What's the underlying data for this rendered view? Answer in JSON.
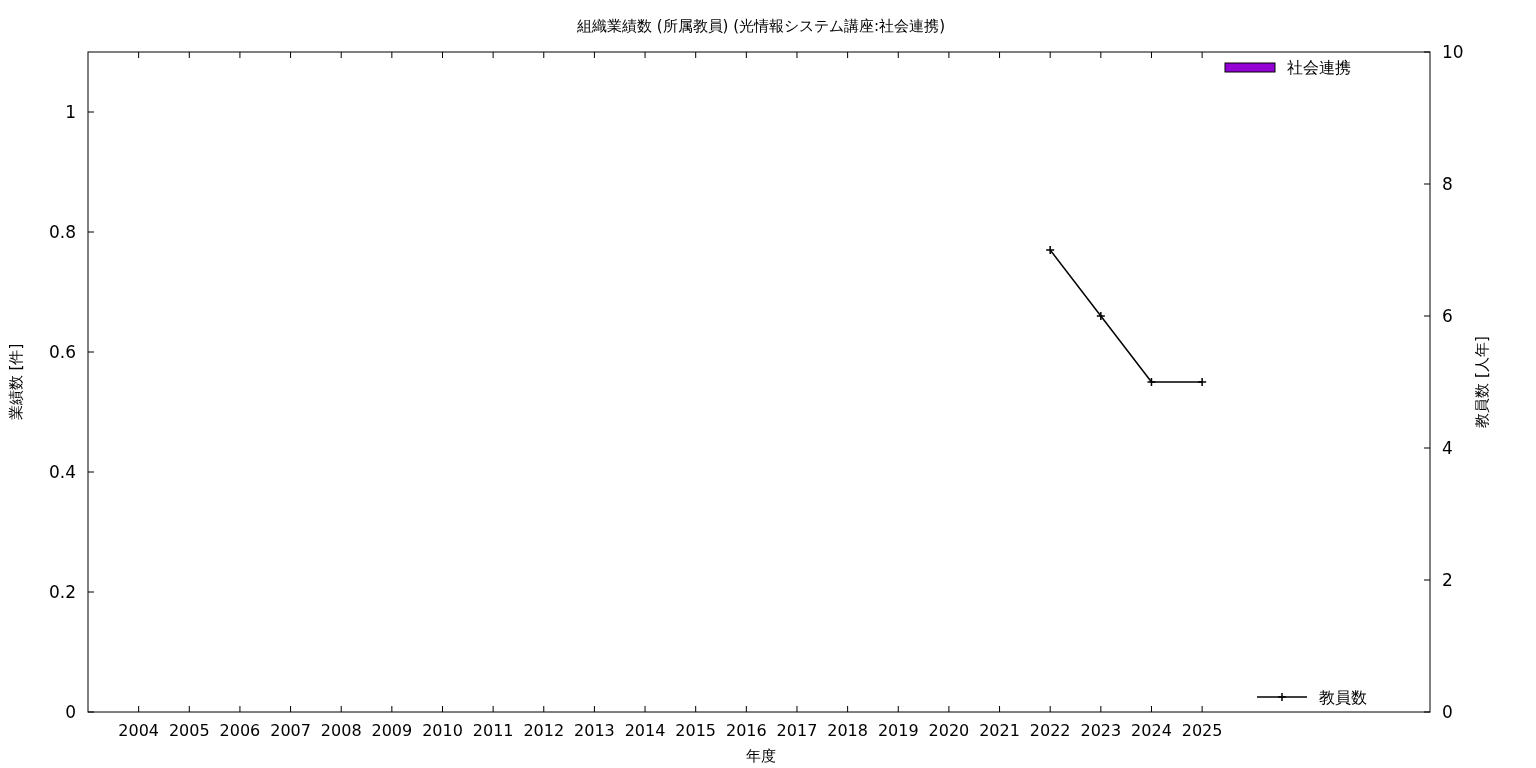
{
  "chart_data": {
    "type": "bar",
    "title": "組織業績数 (所属教員) (光情報システム講座:社会連携)",
    "xlabel": "年度",
    "ylabel": "業績数 [件]",
    "y2label": "教員数 [人年]",
    "categories": [
      "2004",
      "2005",
      "2006",
      "2007",
      "2008",
      "2009",
      "2010",
      "2011",
      "2012",
      "2013",
      "2014",
      "2015",
      "2016",
      "2017",
      "2018",
      "2019",
      "2020",
      "2021",
      "2022",
      "2023",
      "2024",
      "2025",
      null,
      null,
      null,
      null
    ],
    "series": [
      {
        "name": "社会連携",
        "color": "#9400d3",
        "values": [
          null,
          null,
          null,
          null,
          null,
          null,
          null,
          null,
          null,
          null,
          null,
          null,
          null,
          null,
          null,
          null,
          null,
          null,
          null,
          null,
          null,
          null,
          null,
          null,
          null,
          null
        ]
      },
      {
        "name": "教員数",
        "type": "line",
        "axis": "y2",
        "color": "#000000",
        "marker": "cross",
        "values": [
          null,
          null,
          null,
          null,
          null,
          null,
          null,
          null,
          null,
          null,
          null,
          null,
          null,
          null,
          null,
          null,
          null,
          null,
          7,
          6,
          5,
          5,
          null,
          null,
          null,
          null
        ]
      }
    ],
    "ylim": [
      0,
      1.1
    ],
    "yticks": [
      0,
      0.2,
      0.4,
      0.6,
      0.8,
      1
    ],
    "y2lim": [
      0,
      10
    ],
    "y2ticks": [
      0,
      2,
      4,
      6,
      8,
      10
    ],
    "grid": false,
    "legend": "right"
  }
}
